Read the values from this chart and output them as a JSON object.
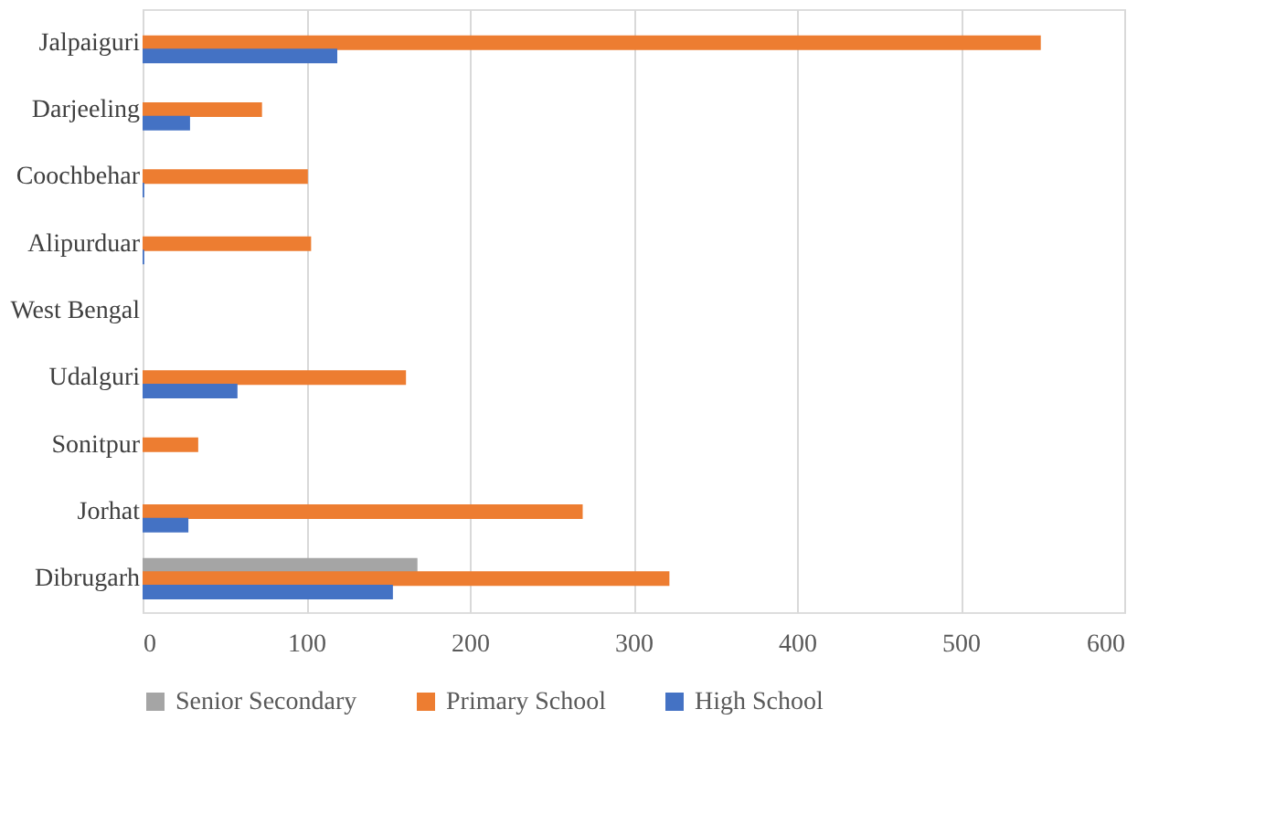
{
  "chart_data": {
    "type": "bar",
    "orientation": "horizontal",
    "categories": [
      "Jalpaiguri",
      "Darjeeling",
      "Coochbehar",
      "Alipurduar",
      "West Bengal",
      "Udalguri",
      "Sonitpur",
      "Jorhat",
      "Dibrugarh"
    ],
    "series": [
      {
        "name": "Senior Secondary",
        "color": "#a5a5a5",
        "values": [
          null,
          null,
          null,
          null,
          null,
          null,
          null,
          null,
          168
        ]
      },
      {
        "name": "Primary School",
        "color": "#ed7d31",
        "values": [
          549,
          73,
          101,
          103,
          null,
          161,
          34,
          269,
          322
        ]
      },
      {
        "name": "High School",
        "color": "#4472c4",
        "values": [
          119,
          29,
          1,
          1,
          null,
          58,
          null,
          28,
          153
        ]
      }
    ],
    "xlim": [
      0,
      600
    ],
    "xticks": [
      0,
      100,
      200,
      300,
      400,
      500,
      600
    ],
    "grid": "x",
    "legend": "bottom"
  }
}
